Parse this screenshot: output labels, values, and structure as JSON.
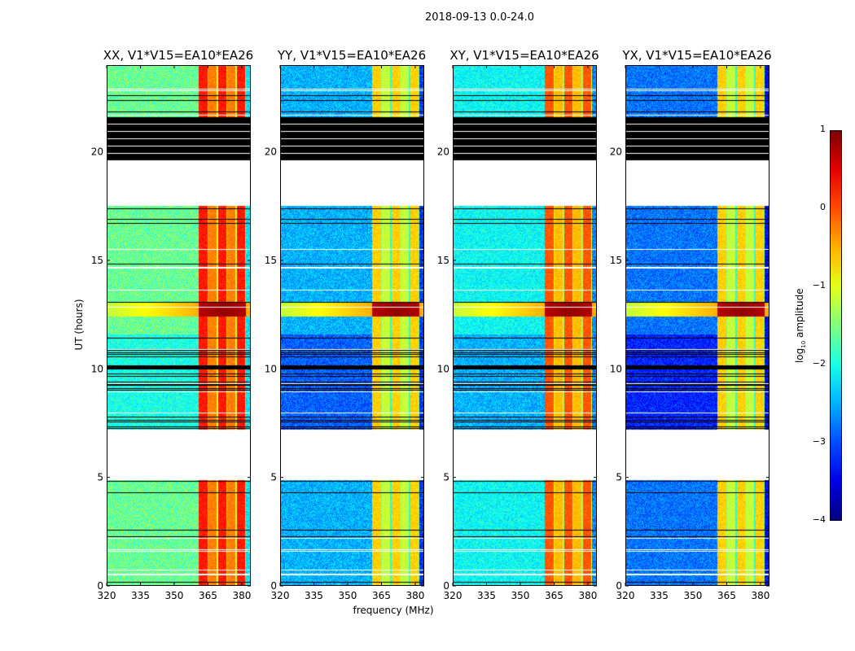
{
  "chart_data": {
    "type": "heatmap",
    "title": "2018-09-13 0.0-24.0",
    "xlabel": "frequency (MHz)",
    "ylabel": "UT (hours)",
    "xlim": [
      320,
      384
    ],
    "ylim": [
      0,
      24
    ],
    "xticks": [
      320,
      335,
      350,
      365,
      380
    ],
    "yticks": [
      0,
      5,
      10,
      15,
      20
    ],
    "colorbar": {
      "label_main": "log",
      "label_sub": "10",
      "label_rest": " amplitude",
      "range": [
        -4,
        1
      ],
      "ticks": [
        1,
        0,
        -1,
        -2,
        -3,
        -4
      ],
      "tick_labels": [
        "1",
        "0",
        "−1",
        "−2",
        "−3",
        "−4"
      ],
      "colormap": "jet"
    },
    "time_segments": [
      {
        "start": 0,
        "end": 4.9,
        "state": "data"
      },
      {
        "start": 4.9,
        "end": 7.2,
        "state": "gap"
      },
      {
        "start": 7.2,
        "end": 11.6,
        "state": "data-noisy"
      },
      {
        "start": 11.6,
        "end": 17.5,
        "state": "data"
      },
      {
        "start": 17.5,
        "end": 19.6,
        "state": "gap"
      },
      {
        "start": 19.6,
        "end": 21.6,
        "state": "flagged"
      },
      {
        "start": 21.6,
        "end": 24,
        "state": "data"
      }
    ],
    "rfi_burst": {
      "start": 12.4,
      "end": 13.1,
      "level": 0.6
    },
    "band_range_mhz": [
      361,
      382
    ],
    "panels": [
      {
        "title": "XX, V1*V15=EA10*EA26",
        "base_level": -1.6,
        "band_level": 0.1
      },
      {
        "title": "YY, V1*V15=EA10*EA26",
        "base_level": -2.5,
        "band_level": -0.8
      },
      {
        "title": "XY, V1*V15=EA10*EA26",
        "base_level": -2.1,
        "band_level": -0.2
      },
      {
        "title": "YX, V1*V15=EA10*EA26",
        "base_level": -2.8,
        "band_level": -0.8
      }
    ]
  }
}
